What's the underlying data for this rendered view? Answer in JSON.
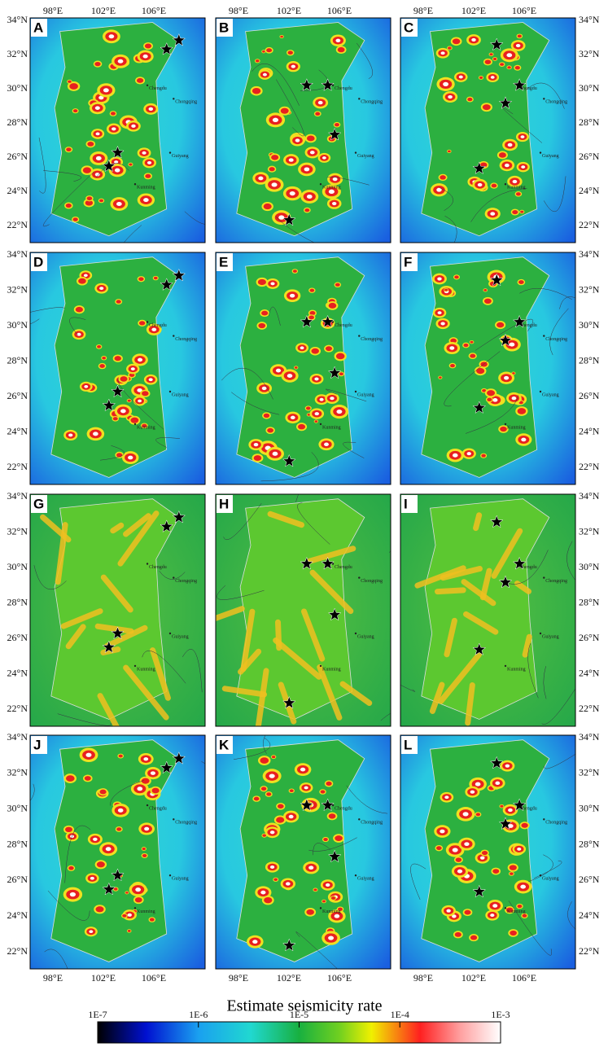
{
  "panel_labels": [
    "A",
    "B",
    "C",
    "D",
    "E",
    "F",
    "G",
    "H",
    "I",
    "J",
    "K",
    "L"
  ],
  "lon_ticks": [
    "98°E",
    "102°E",
    "106°E"
  ],
  "lat_ticks": [
    "34°N",
    "32°N",
    "30°N",
    "28°N",
    "26°N",
    "24°N",
    "22°N"
  ],
  "cities": [
    "Chengdu",
    "Chongqing",
    "Guiyang",
    "Kunming"
  ],
  "colorbar": {
    "title": "Estimate seismicity rate",
    "ticks": [
      "1E-7",
      "1E-6",
      "1E-5",
      "1E-4",
      "1E-3"
    ]
  }
}
